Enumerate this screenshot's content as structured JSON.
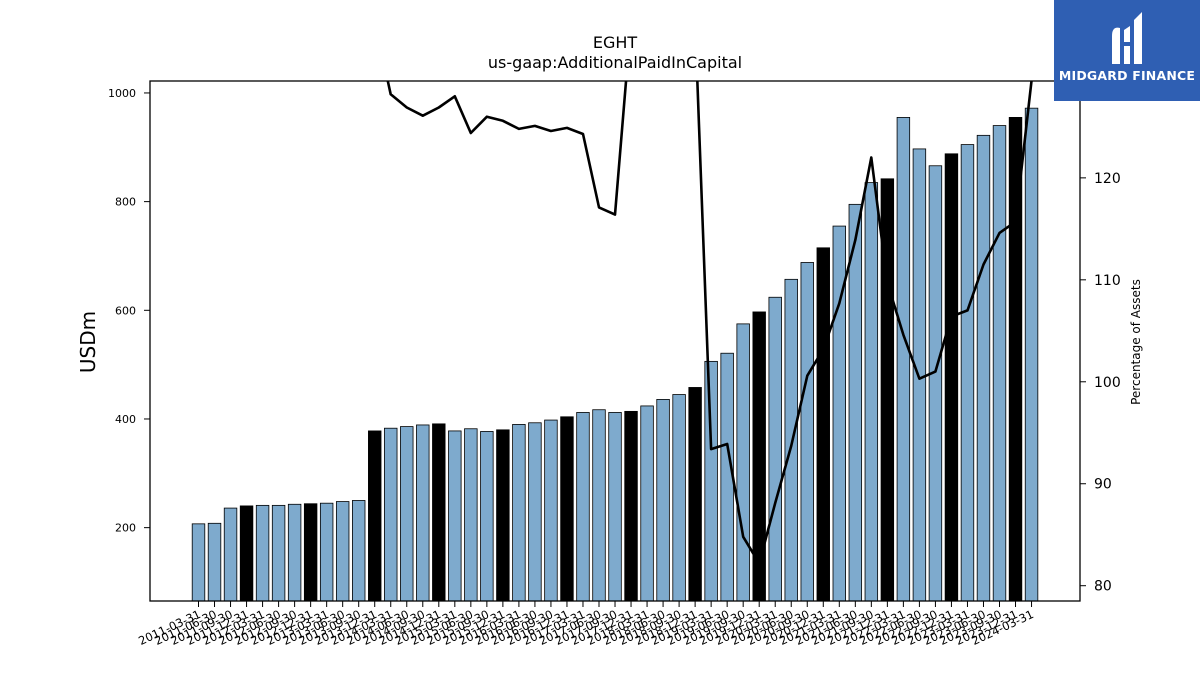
{
  "brand": {
    "name": "MIDGARD FINANCE",
    "color": "#2f5fb3"
  },
  "chart_data": {
    "type": "bar",
    "title": "EGHT",
    "subtitle": "us-gaap:AdditionalPaidInCapital",
    "ylabel": "USDm",
    "ylabel_right": "Percentage of Assets",
    "ylim": [
      65,
      1022
    ],
    "ylim_right": [
      78.5,
      129.5
    ],
    "yticks": [
      200,
      400,
      600,
      800,
      1000
    ],
    "yticks_right": [
      80,
      90,
      100,
      110,
      120
    ],
    "grid": false,
    "colors": {
      "bar": "#7eaacd",
      "bar_highlight": "#000000",
      "line": "#000000"
    },
    "categories": [
      "2011-03-31",
      "2011-06-30",
      "2011-09-30",
      "2011-12-31",
      "2012-03-31",
      "2012-06-30",
      "2012-09-30",
      "2012-12-31",
      "2013-03-31",
      "2013-06-30",
      "2013-09-30",
      "2013-12-31",
      "2014-03-31",
      "2014-06-30",
      "2014-09-30",
      "2014-12-31",
      "2015-03-31",
      "2015-06-30",
      "2015-09-30",
      "2015-12-31",
      "2016-03-31",
      "2016-06-30",
      "2016-09-30",
      "2016-12-31",
      "2017-03-31",
      "2017-06-30",
      "2017-09-30",
      "2017-12-31",
      "2018-03-31",
      "2018-06-30",
      "2018-09-30",
      "2018-12-31",
      "2019-03-31",
      "2019-06-30",
      "2019-09-30",
      "2019-12-31",
      "2020-03-31",
      "2020-06-30",
      "2020-09-30",
      "2020-12-31",
      "2021-03-31",
      "2021-06-30",
      "2021-09-30",
      "2021-12-31",
      "2022-03-31",
      "2022-06-30",
      "2022-09-30",
      "2022-12-31",
      "2023-03-31",
      "2023-06-30",
      "2023-09-30",
      "2023-12-31",
      "2024-03-31"
    ],
    "highlight_categories": [
      "2011-12-31",
      "2012-12-31",
      "2013-12-31",
      "2014-12-31",
      "2015-12-31",
      "2016-12-31",
      "2017-12-31",
      "2018-12-31",
      "2019-12-31",
      "2020-12-31",
      "2021-12-31",
      "2022-12-31",
      "2023-12-31"
    ],
    "series": [
      {
        "axis": "left",
        "values": [
          207,
          208,
          236,
          240,
          241,
          241,
          243,
          244,
          245,
          248,
          250,
          378,
          383,
          386,
          389,
          391,
          378,
          382,
          377,
          380,
          390,
          393,
          398,
          404,
          412,
          417,
          412,
          414,
          424,
          436,
          445,
          458,
          506,
          521,
          575,
          597,
          624,
          657,
          688,
          715,
          755,
          795,
          835,
          842,
          955,
          897,
          866,
          888,
          905,
          922,
          940,
          955,
          972
        ]
      },
      {
        "axis": "right",
        "values": [
          null,
          null,
          null,
          null,
          null,
          null,
          null,
          null,
          null,
          null,
          null,
          null,
          128.2,
          126.9,
          126.1,
          126.9,
          128.0,
          124.4,
          126.0,
          125.6,
          124.8,
          125.1,
          124.6,
          124.9,
          124.3,
          117.1,
          116.4,
          null,
          null,
          null,
          null,
          null,
          93.4,
          93.9,
          84.8,
          82.2,
          88.1,
          93.7,
          100.6,
          103.2,
          107.7,
          113.9,
          122.0,
          109.7,
          104.6,
          100.3,
          101.0,
          106.4,
          107.0,
          111.5,
          114.6,
          115.7,
          129.5
        ]
      }
    ]
  }
}
